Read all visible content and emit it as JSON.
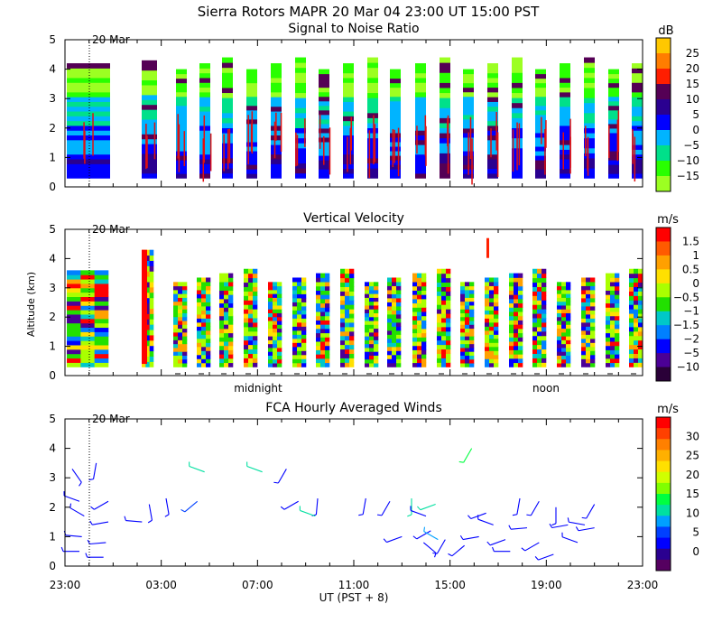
{
  "figure": {
    "title": "Sierra Rotors   MAPR 20 Mar 04   23:00 UT   15:00   PST",
    "date_marker": "20 Mar",
    "x_axis_label": "UT  (PST + 8)"
  },
  "chart_data": [
    {
      "type": "heatmap",
      "title": "Signal to Noise Ratio",
      "ylabel": "",
      "ylim": [
        0,
        5
      ],
      "yticks": [
        "0",
        "1",
        "2",
        "3",
        "4",
        "5"
      ],
      "colorbar_unit": "dB",
      "colorbar_labels": [
        "25",
        "20",
        "15",
        "10",
        "5",
        "0",
        "−5",
        "−10",
        "−15"
      ],
      "colorbar_colors": [
        "#ffc800",
        "#ff7d00",
        "#ff1e00",
        "#550055",
        "#2a0090",
        "#0000ff",
        "#00b4ff",
        "#00e08a",
        "#29ff00",
        "#9cff22"
      ]
    },
    {
      "type": "heatmap",
      "title": "Vertical Velocity",
      "ylabel": "Altitude (km)",
      "ylim": [
        0,
        5
      ],
      "yticks": [
        "0",
        "1",
        "2",
        "3",
        "4",
        "5"
      ],
      "colorbar_unit": "m/s",
      "colorbar_labels": [
        "1.5",
        "1",
        "0.5",
        "0",
        "−0.5",
        "−1",
        "−1.5",
        "−2",
        "−5",
        "−10"
      ],
      "colorbar_colors": [
        "#ff0000",
        "#ff5a00",
        "#ffa000",
        "#ffe000",
        "#aaff00",
        "#22e000",
        "#00c8c8",
        "#0080ff",
        "#0000ff",
        "#4b0096",
        "#2a0038"
      ],
      "time_labels": [
        "midnight",
        "noon"
      ]
    },
    {
      "type": "scatter",
      "title": "FCA Hourly Averaged Winds",
      "ylabel": "",
      "ylim": [
        0,
        5
      ],
      "yticks": [
        "0",
        "1",
        "2",
        "3",
        "4",
        "5"
      ],
      "xticks": [
        "23:00",
        "03:00",
        "07:00",
        "11:00",
        "15:00",
        "19:00",
        "23:00"
      ],
      "xlim_hours": [
        0,
        24
      ],
      "colorbar_unit": "m/s",
      "colorbar_labels": [
        "30",
        "25",
        "20",
        "15",
        "10",
        "5",
        "0"
      ],
      "colorbar_colors": [
        "#ff0000",
        "#ff4000",
        "#ff8000",
        "#ffb000",
        "#ffe000",
        "#d0ff00",
        "#80ff00",
        "#00ff40",
        "#00e0a0",
        "#00a0ff",
        "#0040ff",
        "#0000ff",
        "#2a0090",
        "#550060"
      ]
    }
  ]
}
